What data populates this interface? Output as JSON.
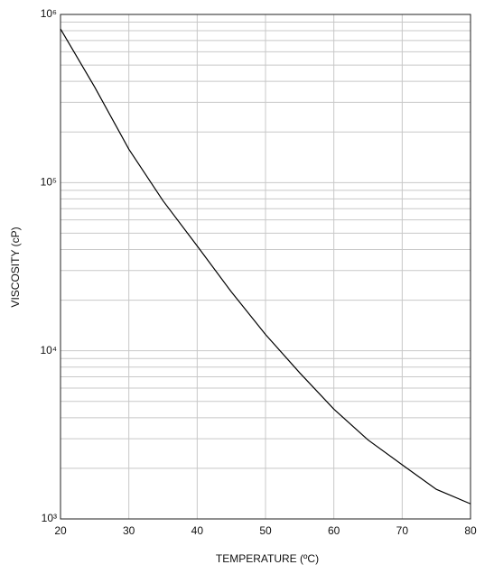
{
  "chart_data": {
    "type": "line",
    "x_label": "TEMPERATURE (ºC)",
    "y_label": "VISCOSITY (cP)",
    "x": [
      20,
      25,
      30,
      35,
      40,
      45,
      50,
      55,
      60,
      65,
      70,
      75,
      80
    ],
    "series": [
      {
        "name": "Viscosity",
        "color": "#000000",
        "values": [
          820000,
          370000,
          158000,
          78000,
          42000,
          22400,
          12500,
          7400,
          4500,
          2950,
          2100,
          1500,
          1230
        ]
      }
    ],
    "xlim": [
      20,
      80
    ],
    "xticks": [
      20,
      30,
      40,
      50,
      60,
      70,
      80
    ],
    "ylim": [
      1000,
      1000000
    ],
    "log_y": true,
    "minor_grid": true,
    "grid": true,
    "yticks": [
      {
        "value": 1000,
        "label": "10³"
      },
      {
        "value": 10000,
        "label": "10⁴"
      },
      {
        "value": 100000,
        "label": "10⁵"
      },
      {
        "value": 1000000,
        "label": "10⁶"
      }
    ]
  }
}
